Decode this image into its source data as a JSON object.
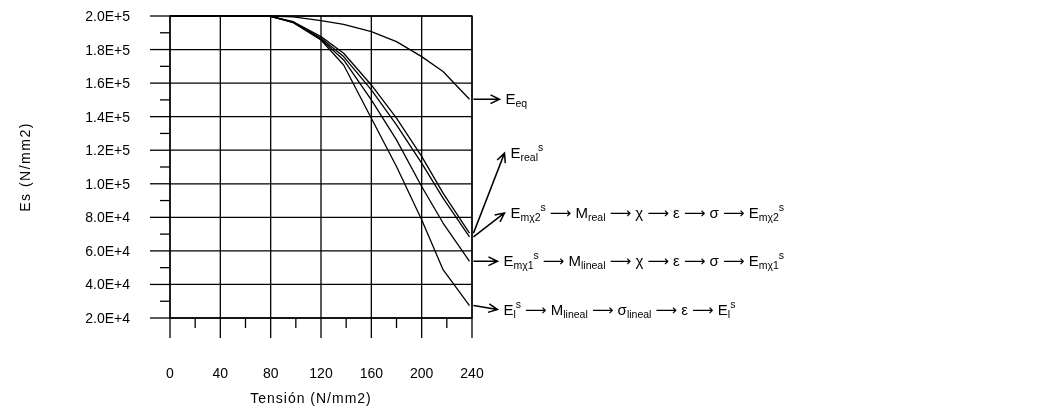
{
  "chart_data": {
    "type": "line",
    "xlabel": "Tensión (N/mm2)",
    "ylabel": "Es (N/mm2)",
    "xlim": [
      0,
      240
    ],
    "ylim": [
      20000,
      200000
    ],
    "xticks": [
      0,
      {
        "value": 20,
        "label": null
      },
      40,
      {
        "value": 60,
        "label": null
      },
      80,
      {
        "value": 100,
        "label": null
      },
      120,
      {
        "value": 140,
        "label": null
      },
      160,
      {
        "value": 180,
        "label": null
      },
      200,
      {
        "value": 220,
        "label": null
      },
      240
    ],
    "yticks": [
      {
        "value": 200000,
        "label": "2.0E+5"
      },
      {
        "value": 190000,
        "label": null
      },
      {
        "value": 180000,
        "label": "1.8E+5"
      },
      {
        "value": 170000,
        "label": null
      },
      {
        "value": 160000,
        "label": "1.6E+5"
      },
      {
        "value": 150000,
        "label": null
      },
      {
        "value": 140000,
        "label": "1.4E+5"
      },
      {
        "value": 130000,
        "label": null
      },
      {
        "value": 120000,
        "label": "1.2E+5"
      },
      {
        "value": 110000,
        "label": null
      },
      {
        "value": 100000,
        "label": "1.0E+5"
      },
      {
        "value": 90000,
        "label": null
      },
      {
        "value": 80000,
        "label": "8.0E+4"
      },
      {
        "value": 70000,
        "label": null
      },
      {
        "value": 60000,
        "label": "6.0E+4"
      },
      {
        "value": 50000,
        "label": null
      },
      {
        "value": 40000,
        "label": "4.0E+4"
      },
      {
        "value": 30000,
        "label": null
      },
      {
        "value": 20000,
        "label": "2.0E+4"
      }
    ],
    "grid": true,
    "legend": "right",
    "line_style": "solid",
    "x": [
      0,
      40,
      80,
      98,
      120,
      138,
      160,
      180,
      200,
      217,
      238
    ],
    "series": [
      {
        "name": "E$_{eq}$",
        "color": "#000000",
        "values": [
          200000,
          200000,
          200000,
          199500,
          197200,
          195000,
          190700,
          184700,
          175800,
          166900,
          150400
        ]
      },
      {
        "name": "E$_{real}$$^{s}$",
        "color": "#000000",
        "values": [
          200000,
          200000,
          199800,
          196600,
          187700,
          177800,
          158900,
          139100,
          116300,
          94400,
          70600
        ]
      },
      {
        "name": "E$_{mχ2}$$^{s}$",
        "color": "#000000",
        "values": [
          200000,
          200000,
          199800,
          196400,
          186700,
          175800,
          156000,
          135100,
          112300,
          91500,
          68300
        ]
      },
      {
        "name": "E$_{mχ1}$$^{s}$",
        "color": "#000000",
        "values": [
          200000,
          200000,
          199800,
          196200,
          186100,
          173800,
          150000,
          126200,
          98400,
          76600,
          53800
        ]
      },
      {
        "name": "E$_{l}$$^{s}$",
        "color": "#000000",
        "values": [
          200000,
          200000,
          199800,
          196000,
          185700,
          170800,
          139100,
          110300,
          78600,
          48800,
          27400
        ]
      }
    ],
    "annotations": [
      "⟶ M$_{real}$ ⟶ χ ⟶ ε ⟶ σ ⟶ E$_{mχ2}$$^{s}$",
      "⟶ M$_{lineal}$ ⟶ χ ⟶ ε ⟶ σ ⟶ E$_{mχ1}$$^{s}$",
      "⟶ M$_{lineal}$ ⟶ σ$_{lineal}$ ⟶ ε ⟶ E$_{l}$$^{s}$"
    ]
  }
}
